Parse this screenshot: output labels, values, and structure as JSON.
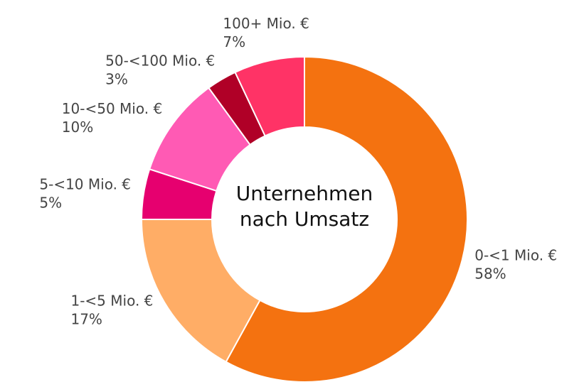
{
  "chart_data": {
    "type": "donut",
    "title": "Unternehmen nach Umsatz",
    "categories": [
      "0-<1 Mio. €",
      "1-<5 Mio. €",
      "5-<10 Mio. €",
      "10-<50 Mio. €",
      "50-<100 Mio. €",
      "100+ Mio. €"
    ],
    "values": [
      58,
      17,
      5,
      10,
      3,
      7
    ],
    "value_labels": [
      "58%",
      "17%",
      "5%",
      "10%",
      "3%",
      "7%"
    ],
    "colors": [
      "#f47210",
      "#ffad66",
      "#e6006f",
      "#ff5ab4",
      "#b00027",
      "#ff3366"
    ]
  }
}
